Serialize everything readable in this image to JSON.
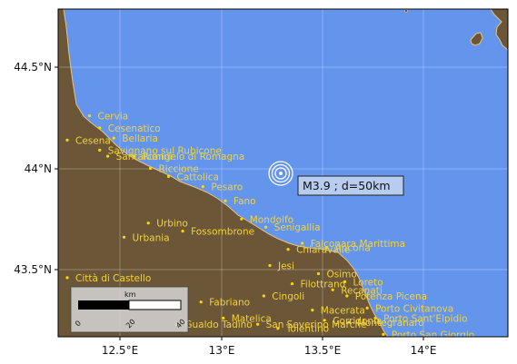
{
  "map": {
    "ocean_color": "#6495ed",
    "land_color": "#6b5638",
    "coast_color": "#e8c080",
    "city_color": "#ffd700",
    "grid": true,
    "lon_ticks": [
      "12.5°E",
      "13°E",
      "13.5°E",
      "14°E"
    ],
    "lat_ticks": [
      "44.5°N",
      "44°N",
      "43.5°N"
    ]
  },
  "event": {
    "label": "M3.9 ; d=50km",
    "lon": 13.29,
    "lat": 43.97,
    "marker": "concentric-circles-icon"
  },
  "scalebar": {
    "unit": "km",
    "ticks": [
      "0",
      "20",
      "40"
    ]
  },
  "cities": [
    {
      "name": "Cervia",
      "lon": 12.35,
      "lat": 44.26
    },
    {
      "name": "Cesenatico",
      "lon": 12.4,
      "lat": 44.2
    },
    {
      "name": "Cesena",
      "lon": 12.24,
      "lat": 44.14
    },
    {
      "name": "Bellaria",
      "lon": 12.47,
      "lat": 44.15
    },
    {
      "name": "Savignano sul Rubicone",
      "lon": 12.4,
      "lat": 44.09
    },
    {
      "name": "Santarcangelo di Romagna",
      "lon": 12.44,
      "lat": 44.06
    },
    {
      "name": "Rimini",
      "lon": 12.57,
      "lat": 44.06
    },
    {
      "name": "Riccione",
      "lon": 12.65,
      "lat": 44.0
    },
    {
      "name": "Cattolica",
      "lon": 12.74,
      "lat": 43.96
    },
    {
      "name": "Pesaro",
      "lon": 12.91,
      "lat": 43.91
    },
    {
      "name": "Fano",
      "lon": 13.02,
      "lat": 43.84
    },
    {
      "name": "Mondolfo",
      "lon": 13.1,
      "lat": 43.75
    },
    {
      "name": "Senigallia",
      "lon": 13.22,
      "lat": 43.71
    },
    {
      "name": "Urbino",
      "lon": 12.64,
      "lat": 43.73
    },
    {
      "name": "Fossombrone",
      "lon": 12.81,
      "lat": 43.69
    },
    {
      "name": "Urbania",
      "lon": 12.52,
      "lat": 43.66
    },
    {
      "name": "Falconara Marittima",
      "lon": 13.4,
      "lat": 43.63
    },
    {
      "name": "Ancona",
      "lon": 13.52,
      "lat": 43.61
    },
    {
      "name": "Chiaravalle",
      "lon": 13.33,
      "lat": 43.6
    },
    {
      "name": "Jesi",
      "lon": 13.24,
      "lat": 43.52
    },
    {
      "name": "Osimo",
      "lon": 13.48,
      "lat": 43.48
    },
    {
      "name": "Loreto",
      "lon": 13.61,
      "lat": 43.44
    },
    {
      "name": "Filottrano",
      "lon": 13.35,
      "lat": 43.43
    },
    {
      "name": "Recanati",
      "lon": 13.55,
      "lat": 43.4
    },
    {
      "name": "Potenza Picena",
      "lon": 13.62,
      "lat": 43.37
    },
    {
      "name": "Cingoli",
      "lon": 13.21,
      "lat": 43.37
    },
    {
      "name": "Città di Castello",
      "lon": 12.24,
      "lat": 43.46
    },
    {
      "name": "Fabriano",
      "lon": 12.9,
      "lat": 43.34
    },
    {
      "name": "Macerata",
      "lon": 13.45,
      "lat": 43.3
    },
    {
      "name": "Porto Civitanova",
      "lon": 13.72,
      "lat": 43.31
    },
    {
      "name": "Matelica",
      "lon": 13.01,
      "lat": 43.26
    },
    {
      "name": "Corridonia",
      "lon": 13.51,
      "lat": 43.25
    },
    {
      "name": "Porto Sant'Elpidio",
      "lon": 13.76,
      "lat": 43.26
    },
    {
      "name": "Montegranaro",
      "lon": 13.63,
      "lat": 43.24
    },
    {
      "name": "Gualdo Tadino",
      "lon": 12.78,
      "lat": 43.23
    },
    {
      "name": "San Severino Marche",
      "lon": 13.18,
      "lat": 43.23
    },
    {
      "name": "Tolentino",
      "lon": 13.28,
      "lat": 43.21
    },
    {
      "name": "Porto San Giorgio",
      "lon": 13.8,
      "lat": 43.18
    }
  ]
}
